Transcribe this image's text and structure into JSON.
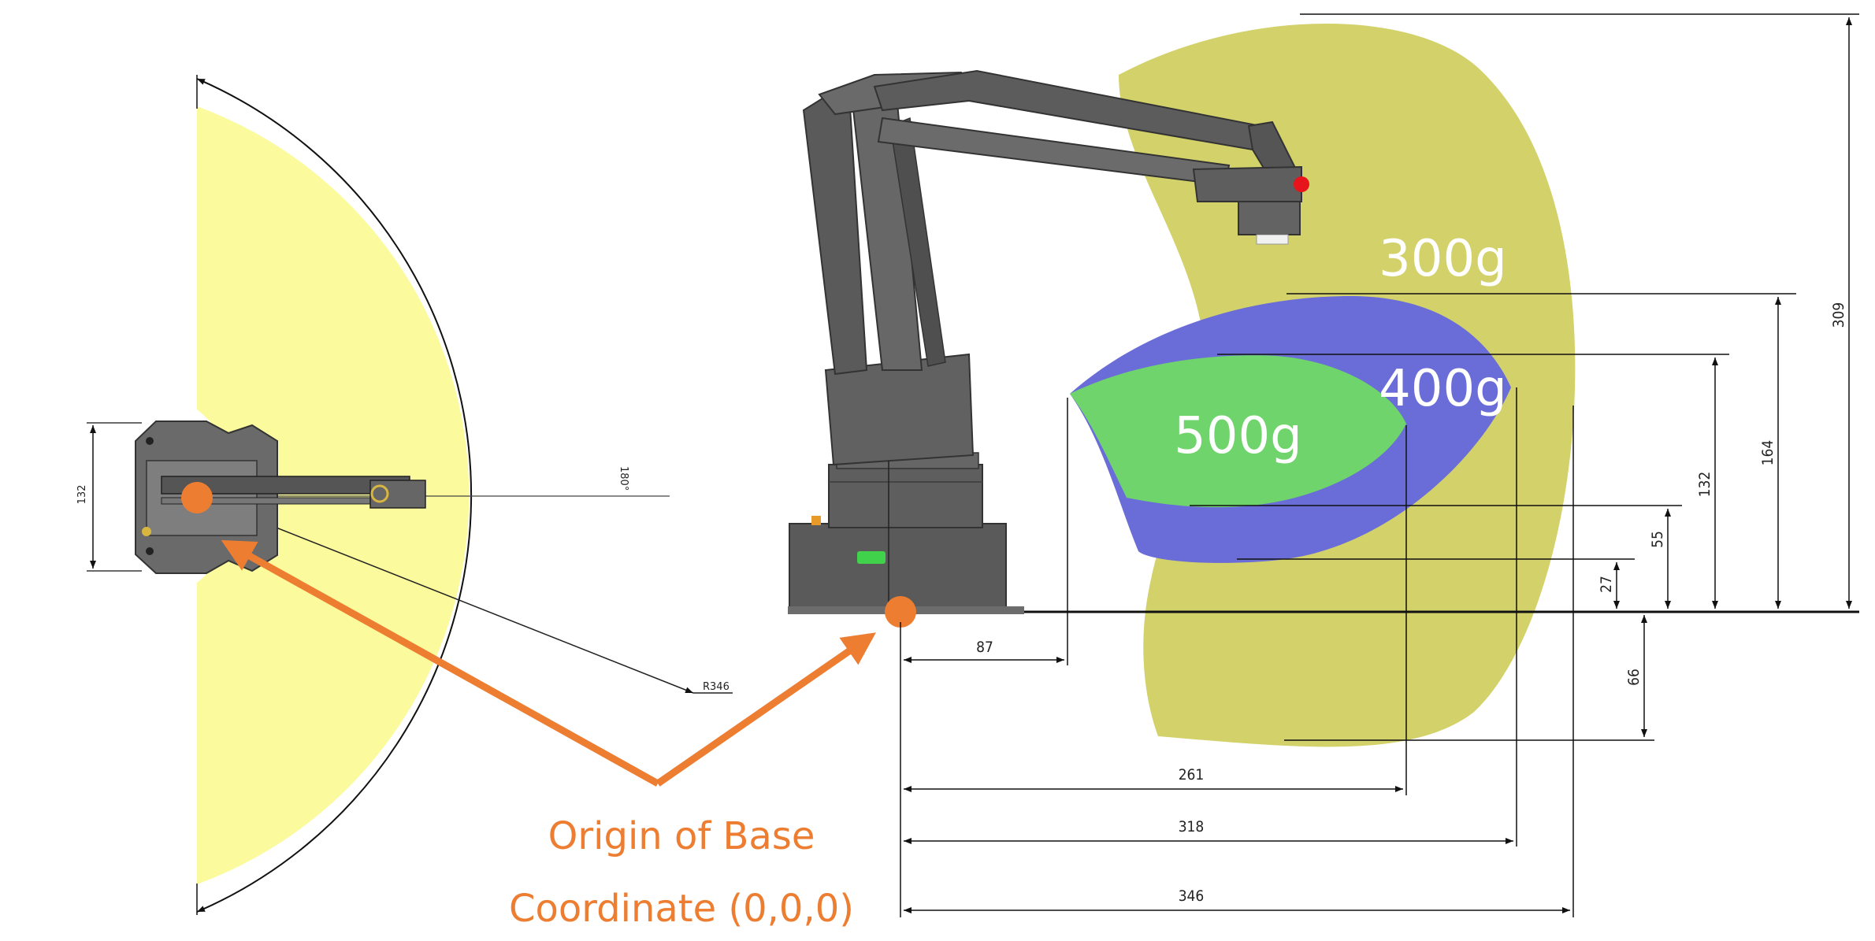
{
  "colors": {
    "top_view_envelope": "#fbfa9c",
    "zone_300g": "#d2d16a",
    "zone_400g": "#6a6cd8",
    "zone_500g": "#6ed46b",
    "origin_marker": "#ed7d31",
    "end_effector_dot": "#e8141c",
    "arm_body": "#5c5c5c"
  },
  "top_view": {
    "dim_height": "132",
    "dim_angle": "180°",
    "dim_radius": "R346"
  },
  "side_view": {
    "zones": {
      "label_300g": "300g",
      "label_400g": "400g",
      "label_500g": "500g"
    },
    "vertical_dims": {
      "d309": "309",
      "d164": "164",
      "d132": "132",
      "d55": "55",
      "d27": "27",
      "d66": "66"
    },
    "horizontal_dims": {
      "d87": "87",
      "d261": "261",
      "d318": "318",
      "d346": "346"
    }
  },
  "origin_callout": {
    "line1": "Origin of Base",
    "line2": "Coordinate (0,0,0)"
  }
}
